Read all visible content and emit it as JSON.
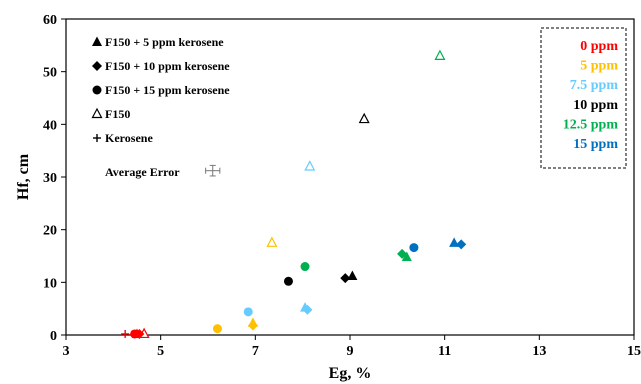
{
  "chart_data": {
    "type": "scatter",
    "xlabel": "Eg, %",
    "ylabel": "Hf, cm",
    "xlim": [
      3,
      15
    ],
    "ylim": [
      0,
      60
    ],
    "xticks": [
      3,
      5,
      7,
      9,
      11,
      13,
      15
    ],
    "yticks": [
      0,
      10,
      20,
      30,
      40,
      50,
      60
    ],
    "grid": false,
    "marker_legend": {
      "placement": "top-left",
      "entries": [
        {
          "marker": "filled-triangle",
          "label": "F150 + 5 ppm kerosene"
        },
        {
          "marker": "filled-diamond",
          "label": "F150 + 10 ppm kerosene"
        },
        {
          "marker": "filled-circle",
          "label": "F150 + 15 ppm kerosene"
        },
        {
          "marker": "open-triangle",
          "label": "F150"
        },
        {
          "marker": "plus",
          "label": "Kerosene"
        }
      ]
    },
    "average_error": {
      "label": "Average Error",
      "x": 6.1,
      "y": 31.2,
      "x_err": 0.15,
      "y_err": 1.0
    },
    "color_legend": {
      "placement": "top-right",
      "border": "dashed",
      "entries": [
        {
          "label": "0 ppm",
          "color": "#ff0000"
        },
        {
          "label": "5 ppm",
          "color": "#ffc000"
        },
        {
          "label": "7.5 ppm",
          "color": "#66ccff"
        },
        {
          "label": "10 ppm",
          "color": "#000000"
        },
        {
          "label": "12.5 ppm",
          "color": "#00b050"
        },
        {
          "label": "15 ppm",
          "color": "#0070c0"
        }
      ]
    },
    "points": [
      {
        "group": "F150",
        "concentration": "0 ppm",
        "marker": "open-triangle",
        "x": 4.65,
        "y": 0.2
      },
      {
        "group": "Kerosene",
        "concentration": "0 ppm",
        "marker": "plus",
        "x": 4.25,
        "y": 0.2
      },
      {
        "group": "F150 + 5 ppm kerosene",
        "concentration": "0 ppm",
        "marker": "filled-triangle",
        "x": 4.5,
        "y": 0.2
      },
      {
        "group": "F150 + 10 ppm kerosene",
        "concentration": "0 ppm",
        "marker": "filled-diamond",
        "x": 4.55,
        "y": 0.2
      },
      {
        "group": "F150 + 15 ppm kerosene",
        "concentration": "0 ppm",
        "marker": "filled-circle",
        "x": 4.45,
        "y": 0.2
      },
      {
        "group": "F150",
        "concentration": "5 ppm",
        "marker": "open-triangle",
        "x": 7.35,
        "y": 17.5
      },
      {
        "group": "F150 + 5 ppm kerosene",
        "concentration": "5 ppm",
        "marker": "filled-triangle",
        "x": 6.95,
        "y": 2.3
      },
      {
        "group": "F150 + 10 ppm kerosene",
        "concentration": "5 ppm",
        "marker": "filled-diamond",
        "x": 6.95,
        "y": 1.8
      },
      {
        "group": "F150 + 15 ppm kerosene",
        "concentration": "5 ppm",
        "marker": "filled-circle",
        "x": 6.2,
        "y": 1.2
      },
      {
        "group": "F150",
        "concentration": "7.5 ppm",
        "marker": "open-triangle",
        "x": 8.15,
        "y": 32
      },
      {
        "group": "F150 + 5 ppm kerosene",
        "concentration": "7.5 ppm",
        "marker": "filled-triangle",
        "x": 8.05,
        "y": 5.2
      },
      {
        "group": "F150 + 10 ppm kerosene",
        "concentration": "7.5 ppm",
        "marker": "filled-diamond",
        "x": 8.1,
        "y": 4.8
      },
      {
        "group": "F150 + 15 ppm kerosene",
        "concentration": "7.5 ppm",
        "marker": "filled-circle",
        "x": 6.85,
        "y": 4.4
      },
      {
        "group": "F150",
        "concentration": "10 ppm",
        "marker": "open-triangle",
        "x": 9.3,
        "y": 41
      },
      {
        "group": "F150 + 5 ppm kerosene",
        "concentration": "10 ppm",
        "marker": "filled-triangle",
        "x": 9.05,
        "y": 11.2
      },
      {
        "group": "F150 + 10 ppm kerosene",
        "concentration": "10 ppm",
        "marker": "filled-diamond",
        "x": 8.9,
        "y": 10.8
      },
      {
        "group": "F150 + 15 ppm kerosene",
        "concentration": "10 ppm",
        "marker": "filled-circle",
        "x": 7.7,
        "y": 10.2
      },
      {
        "group": "F150",
        "concentration": "12.5 ppm",
        "marker": "open-triangle",
        "x": 10.9,
        "y": 53
      },
      {
        "group": "F150 + 5 ppm kerosene",
        "concentration": "12.5 ppm",
        "marker": "filled-triangle",
        "x": 10.2,
        "y": 14.8
      },
      {
        "group": "F150 + 10 ppm kerosene",
        "concentration": "12.5 ppm",
        "marker": "filled-diamond",
        "x": 10.1,
        "y": 15.4
      },
      {
        "group": "F150 + 15 ppm kerosene",
        "concentration": "12.5 ppm",
        "marker": "filled-circle",
        "x": 8.05,
        "y": 13
      },
      {
        "group": "F150 + 5 ppm kerosene",
        "concentration": "15 ppm",
        "marker": "filled-triangle",
        "x": 11.2,
        "y": 17.5
      },
      {
        "group": "F150 + 10 ppm kerosene",
        "concentration": "15 ppm",
        "marker": "filled-diamond",
        "x": 11.35,
        "y": 17.2
      },
      {
        "group": "F150 + 15 ppm kerosene",
        "concentration": "15 ppm",
        "marker": "filled-circle",
        "x": 10.35,
        "y": 16.6
      }
    ]
  }
}
